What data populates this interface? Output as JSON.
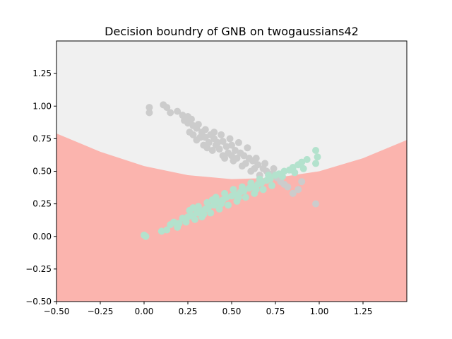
{
  "chart_data": {
    "type": "scatter",
    "title": "Decision boundry of GNB on twogaussians42",
    "xlabel": "",
    "ylabel": "",
    "xlim": [
      -0.5,
      1.5
    ],
    "ylim": [
      -0.5,
      1.5
    ],
    "xticks": [
      -0.5,
      -0.25,
      0.0,
      0.25,
      0.5,
      0.75,
      1.0,
      1.25
    ],
    "xtick_labels": [
      "−0.50",
      "−0.25",
      "0.00",
      "0.25",
      "0.50",
      "0.75",
      "1.00",
      "1.25"
    ],
    "yticks": [
      -0.5,
      -0.25,
      0.0,
      0.25,
      0.5,
      0.75,
      1.0,
      1.25
    ],
    "ytick_labels": [
      "−0.50",
      "−0.25",
      "0.00",
      "0.25",
      "0.50",
      "0.75",
      "1.00",
      "1.25"
    ],
    "grid": false,
    "background_region": {
      "upper_region_color": "#f0f0f0",
      "lower_region_color": "#fbb4ae",
      "boundary_points": [
        [
          -0.5,
          0.79
        ],
        [
          -0.25,
          0.65
        ],
        [
          0.0,
          0.54
        ],
        [
          0.25,
          0.47
        ],
        [
          0.5,
          0.44
        ],
        [
          0.75,
          0.45
        ],
        [
          1.0,
          0.5
        ],
        [
          1.25,
          0.6
        ],
        [
          1.5,
          0.74
        ]
      ]
    },
    "series": [
      {
        "color": "#cccccc",
        "points": [
          [
            0.03,
            0.99
          ],
          [
            0.03,
            0.95
          ],
          [
            0.11,
            1.01
          ],
          [
            0.13,
            0.99
          ],
          [
            0.15,
            0.95
          ],
          [
            0.19,
            0.96
          ],
          [
            0.22,
            0.93
          ],
          [
            0.25,
            0.92
          ],
          [
            0.25,
            0.87
          ],
          [
            0.28,
            0.85
          ],
          [
            0.3,
            0.83
          ],
          [
            0.33,
            0.8
          ],
          [
            0.35,
            0.82
          ],
          [
            0.38,
            0.78
          ],
          [
            0.4,
            0.75
          ],
          [
            0.42,
            0.72
          ],
          [
            0.45,
            0.73
          ],
          [
            0.47,
            0.69
          ],
          [
            0.5,
            0.7
          ],
          [
            0.52,
            0.66
          ],
          [
            0.55,
            0.64
          ],
          [
            0.57,
            0.62
          ],
          [
            0.6,
            0.6
          ],
          [
            0.62,
            0.58
          ],
          [
            0.65,
            0.55
          ],
          [
            0.68,
            0.52
          ],
          [
            0.7,
            0.5
          ],
          [
            0.73,
            0.48
          ],
          [
            0.76,
            0.45
          ],
          [
            0.8,
            0.4
          ],
          [
            0.85,
            0.33
          ],
          [
            0.98,
            0.25
          ],
          [
            0.3,
            0.74
          ],
          [
            0.34,
            0.7
          ],
          [
            0.37,
            0.72
          ],
          [
            0.43,
            0.67
          ],
          [
            0.48,
            0.64
          ],
          [
            0.53,
            0.6
          ],
          [
            0.58,
            0.56
          ],
          [
            0.63,
            0.52
          ],
          [
            0.28,
            0.78
          ],
          [
            0.32,
            0.76
          ],
          [
            0.36,
            0.68
          ],
          [
            0.41,
            0.7
          ],
          [
            0.46,
            0.6
          ],
          [
            0.51,
            0.58
          ],
          [
            0.56,
            0.54
          ],
          [
            0.61,
            0.5
          ],
          [
            0.66,
            0.47
          ],
          [
            0.71,
            0.44
          ],
          [
            0.4,
            0.8
          ],
          [
            0.44,
            0.78
          ],
          [
            0.49,
            0.75
          ],
          [
            0.54,
            0.72
          ],
          [
            0.59,
            0.68
          ],
          [
            0.39,
            0.66
          ],
          [
            0.45,
            0.62
          ],
          [
            0.5,
            0.62
          ],
          [
            0.64,
            0.6
          ],
          [
            0.69,
            0.56
          ],
          [
            0.74,
            0.52
          ],
          [
            0.78,
            0.42
          ],
          [
            0.82,
            0.38
          ],
          [
            0.88,
            0.36
          ],
          [
            0.9,
            0.42
          ],
          [
            0.35,
            0.76
          ],
          [
            0.27,
            0.9
          ],
          [
            0.31,
            0.86
          ],
          [
            0.23,
            0.89
          ],
          [
            0.26,
            0.8
          ]
        ]
      },
      {
        "color": "#b3e2cd",
        "points": [
          [
            0.0,
            0.01
          ],
          [
            0.01,
            0.0
          ],
          [
            0.1,
            0.04
          ],
          [
            0.13,
            0.05
          ],
          [
            0.15,
            0.09
          ],
          [
            0.17,
            0.11
          ],
          [
            0.2,
            0.1
          ],
          [
            0.22,
            0.14
          ],
          [
            0.25,
            0.15
          ],
          [
            0.27,
            0.16
          ],
          [
            0.3,
            0.18
          ],
          [
            0.32,
            0.2
          ],
          [
            0.35,
            0.21
          ],
          [
            0.37,
            0.23
          ],
          [
            0.4,
            0.24
          ],
          [
            0.42,
            0.27
          ],
          [
            0.45,
            0.28
          ],
          [
            0.47,
            0.3
          ],
          [
            0.5,
            0.31
          ],
          [
            0.52,
            0.32
          ],
          [
            0.55,
            0.34
          ],
          [
            0.57,
            0.35
          ],
          [
            0.6,
            0.37
          ],
          [
            0.62,
            0.38
          ],
          [
            0.65,
            0.4
          ],
          [
            0.67,
            0.41
          ],
          [
            0.7,
            0.43
          ],
          [
            0.72,
            0.44
          ],
          [
            0.75,
            0.47
          ],
          [
            0.77,
            0.48
          ],
          [
            0.8,
            0.5
          ],
          [
            0.83,
            0.51
          ],
          [
            0.85,
            0.53
          ],
          [
            0.88,
            0.55
          ],
          [
            0.9,
            0.57
          ],
          [
            0.93,
            0.59
          ],
          [
            0.98,
            0.66
          ],
          [
            0.99,
            0.61
          ],
          [
            0.98,
            0.56
          ],
          [
            0.29,
            0.13
          ],
          [
            0.33,
            0.15
          ],
          [
            0.38,
            0.18
          ],
          [
            0.43,
            0.21
          ],
          [
            0.48,
            0.24
          ],
          [
            0.53,
            0.27
          ],
          [
            0.58,
            0.3
          ],
          [
            0.63,
            0.33
          ],
          [
            0.68,
            0.36
          ],
          [
            0.73,
            0.39
          ],
          [
            0.26,
            0.2
          ],
          [
            0.31,
            0.23
          ],
          [
            0.36,
            0.26
          ],
          [
            0.41,
            0.3
          ],
          [
            0.46,
            0.33
          ],
          [
            0.51,
            0.36
          ],
          [
            0.56,
            0.38
          ],
          [
            0.61,
            0.41
          ],
          [
            0.66,
            0.44
          ],
          [
            0.71,
            0.47
          ],
          [
            0.24,
            0.11
          ],
          [
            0.19,
            0.07
          ],
          [
            0.34,
            0.17
          ],
          [
            0.44,
            0.25
          ],
          [
            0.54,
            0.3
          ],
          [
            0.64,
            0.36
          ],
          [
            0.79,
            0.46
          ],
          [
            0.86,
            0.49
          ],
          [
            0.91,
            0.52
          ],
          [
            0.28,
            0.22
          ],
          [
            0.39,
            0.28
          ]
        ]
      }
    ]
  }
}
